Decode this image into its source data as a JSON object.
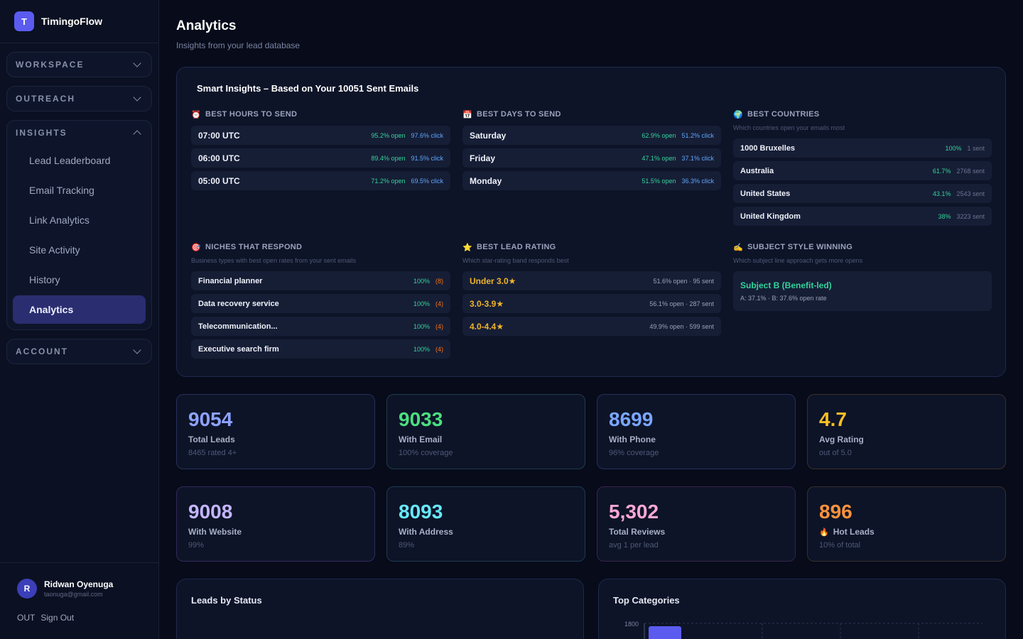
{
  "brand": {
    "logo_letter": "T",
    "name": "TimingoFlow"
  },
  "sidebar": {
    "groups": [
      {
        "label": "WORKSPACE",
        "expanded": false
      },
      {
        "label": "OUTREACH",
        "expanded": false
      },
      {
        "label": "INSIGHTS",
        "expanded": true,
        "items": [
          {
            "label": "Lead Leaderboard"
          },
          {
            "label": "Email Tracking"
          },
          {
            "label": "Link Analytics"
          },
          {
            "label": "Site Activity"
          },
          {
            "label": "History"
          },
          {
            "label": "Analytics",
            "active": true
          }
        ]
      },
      {
        "label": "ACCOUNT",
        "expanded": false
      }
    ],
    "user": {
      "initial": "R",
      "name": "Ridwan Oyenuga",
      "email": "taonuga@gmail.com"
    },
    "signout": {
      "prefix": "OUT",
      "label": "Sign Out"
    }
  },
  "header": {
    "title": "Analytics",
    "subtitle": "Insights from your lead database"
  },
  "insights": {
    "title": "Smart Insights – Based on Your 10051 Sent Emails",
    "best_hours": {
      "icon": "⏰",
      "title": "BEST HOURS TO SEND",
      "rows": [
        {
          "label": "07:00 UTC",
          "open": "95.2% open",
          "click": "97.6% click"
        },
        {
          "label": "06:00 UTC",
          "open": "89.4% open",
          "click": "91.5% click"
        },
        {
          "label": "05:00 UTC",
          "open": "71.2% open",
          "click": "69.5% click"
        }
      ]
    },
    "best_days": {
      "icon": "📅",
      "title": "BEST DAYS TO SEND",
      "rows": [
        {
          "label": "Saturday",
          "open": "62.9% open",
          "click": "51.2% click"
        },
        {
          "label": "Friday",
          "open": "47.1% open",
          "click": "37.1% click"
        },
        {
          "label": "Monday",
          "open": "51.5% open",
          "click": "36.3% click"
        }
      ]
    },
    "best_countries": {
      "icon": "🌍",
      "title": "BEST COUNTRIES",
      "desc": "Which countries open your emails most",
      "rows": [
        {
          "label": "1000 Bruxelles",
          "rate": "100%",
          "sent": "1 sent"
        },
        {
          "label": "Australia",
          "rate": "61.7%",
          "sent": "2768 sent"
        },
        {
          "label": "United States",
          "rate": "43.1%",
          "sent": "2543 sent"
        },
        {
          "label": "United Kingdom",
          "rate": "38%",
          "sent": "3223 sent"
        }
      ]
    },
    "niches": {
      "icon": "🎯",
      "title": "NICHES THAT RESPOND",
      "desc": "Business types with best open rates from your sent emails",
      "rows": [
        {
          "label": "Financial planner",
          "rate": "100%",
          "count": "(8)"
        },
        {
          "label": "Data recovery service",
          "rate": "100%",
          "count": "(4)"
        },
        {
          "label": "Telecommunication...",
          "rate": "100%",
          "count": "(4)"
        },
        {
          "label": "Executive search firm",
          "rate": "100%",
          "count": "(4)"
        }
      ]
    },
    "lead_rating": {
      "icon": "⭐",
      "title": "BEST LEAD RATING",
      "desc": "Which star-rating band responds best",
      "rows": [
        {
          "label": "Under 3.0★",
          "stats": "51.6% open · 95 sent"
        },
        {
          "label": "3.0-3.9★",
          "stats": "56.1% open · 287 sent"
        },
        {
          "label": "4.0-4.4★",
          "stats": "49.9% open · 599 sent"
        }
      ]
    },
    "subject_style": {
      "icon": "✍️",
      "title": "SUBJECT STYLE WINNING",
      "desc": "Which subject line approach gets more opens",
      "winner": "Subject B (Benefit-led)",
      "meta": "A: 37.1% · B: 37.6% open rate"
    }
  },
  "cards": [
    {
      "value": "9054",
      "label": "Total Leads",
      "sub": "8465 rated 4+",
      "color": "#8ea2ff",
      "cls": "c-blue"
    },
    {
      "value": "9033",
      "label": "With Email",
      "sub": "100% coverage",
      "color": "#4ade80",
      "cls": "c-green"
    },
    {
      "value": "8699",
      "label": "With Phone",
      "sub": "96% coverage",
      "color": "#7aa6ff",
      "cls": "c-blue"
    },
    {
      "value": "4.7",
      "label": "Avg Rating",
      "sub": "out of 5.0",
      "color": "#fbbf24",
      "cls": "c-gold"
    },
    {
      "value": "9008",
      "label": "With Website",
      "sub": "99%",
      "color": "#c4b5fd",
      "cls": "c-purple"
    },
    {
      "value": "8093",
      "label": "With Address",
      "sub": "89%",
      "color": "#67e8f9",
      "cls": "c-cyan"
    },
    {
      "value": "5,302",
      "label": "Total Reviews",
      "sub": "avg 1 per lead",
      "color": "#f9a8d4",
      "cls": "c-pink"
    },
    {
      "value": "896",
      "label": "Hot Leads",
      "label_icon": "🔥",
      "sub": "10% of total",
      "color": "#fb923c",
      "cls": "c-orange"
    }
  ],
  "panels": {
    "status": {
      "title": "Leads by Status"
    },
    "categories": {
      "title": "Top Categories"
    }
  },
  "chart_data": {
    "type": "bar",
    "title": "Top Categories",
    "yticks": [
      "1800"
    ],
    "values": [
      1800
    ],
    "bar_color": "#5b5bf0"
  }
}
